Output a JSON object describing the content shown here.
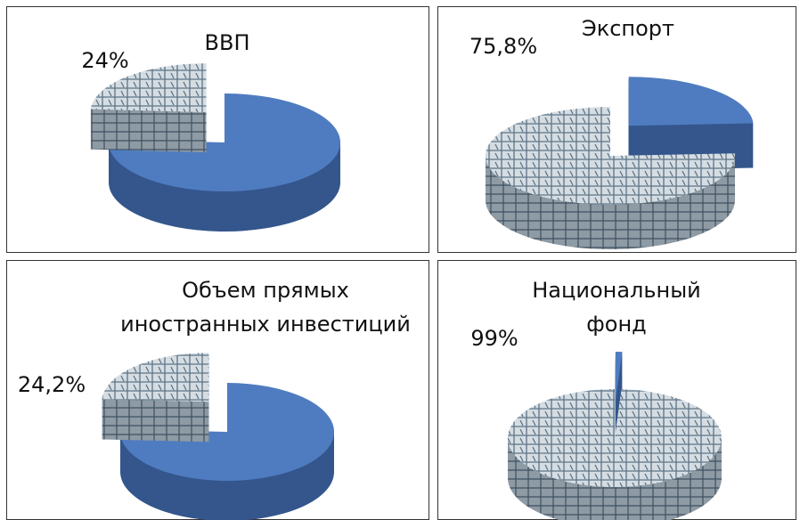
{
  "chart_data": [
    {
      "type": "pie",
      "title": "ВВП",
      "values": [
        24
      ],
      "value_labels": [
        "24%"
      ],
      "color": "#4f7cc0"
    },
    {
      "type": "pie",
      "title": "Экспорт",
      "values": [
        75.8
      ],
      "value_labels": [
        "75,8%"
      ],
      "color": "#4f7cc0"
    },
    {
      "type": "pie",
      "title": "Объем прямых\nиностранных инвестиций",
      "values": [
        24.2
      ],
      "value_labels": [
        "24,2%"
      ],
      "color": "#4f7cc0"
    },
    {
      "type": "pie",
      "title": "Национальный\nфонд",
      "values": [
        99
      ],
      "value_labels": [
        "99%"
      ],
      "color": "#4f7cc0"
    }
  ]
}
